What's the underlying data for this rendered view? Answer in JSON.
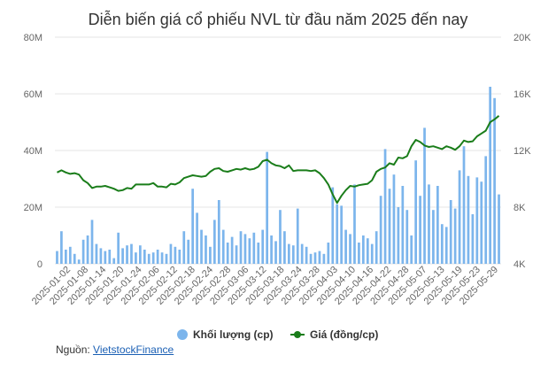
{
  "chart_data": {
    "type": "bar+line",
    "title": "Diễn biến giá cổ phiếu NVL từ đầu năm 2025 đến nay",
    "left_axis": {
      "ylim": [
        0,
        80000000
      ],
      "ticks": [
        "0",
        "20M",
        "40M",
        "60M",
        "80M"
      ]
    },
    "right_axis": {
      "ylim": [
        4000,
        20000
      ],
      "ticks": [
        "4K",
        "8K",
        "12K",
        "16K",
        "20K"
      ]
    },
    "x_tick_labels": [
      "2025-01-02",
      "2025-01-08",
      "2025-01-14",
      "2025-01-20",
      "2025-01-24",
      "2025-02-06",
      "2025-02-12",
      "2025-02-18",
      "2025-02-24",
      "2025-02-28",
      "2025-03-06",
      "2025-03-12",
      "2025-03-18",
      "2025-03-24",
      "2025-03-28",
      "2025-04-03",
      "2025-04-10",
      "2025-04-16",
      "2025-04-22",
      "2025-04-28",
      "2025-05-07",
      "2025-05-13",
      "2025-05-19",
      "2025-05-23",
      "2025-05-29"
    ],
    "grid": true,
    "legend_position": "bottom",
    "series": [
      {
        "name": "Khối lượng (cp)",
        "kind": "bar",
        "axis": "left",
        "color": "#7cb5ec",
        "values": [
          4500000,
          11500000,
          5000000,
          6000000,
          3500000,
          1500000,
          8500000,
          10000000,
          15500000,
          7000000,
          5500000,
          4500000,
          5000000,
          2000000,
          11000000,
          5500000,
          6500000,
          7000000,
          4000000,
          6500000,
          5000000,
          3500000,
          4000000,
          5000000,
          4000000,
          3500000,
          7000000,
          6000000,
          5000000,
          11500000,
          8500000,
          26500000,
          18000000,
          12000000,
          10000000,
          6000000,
          15500000,
          22500000,
          12000000,
          7500000,
          9500000,
          6500000,
          11500000,
          10500000,
          9000000,
          11000000,
          7500000,
          12000000,
          39500000,
          10000000,
          8000000,
          19000000,
          11500000,
          7000000,
          6500000,
          19500000,
          7000000,
          6000000,
          3500000,
          4000000,
          4500000,
          3500000,
          7500000,
          27000000,
          21000000,
          20500000,
          12000000,
          10500000,
          28000000,
          7500000,
          10000000,
          9000000,
          7000000,
          11500000,
          24000000,
          40500000,
          26500000,
          31500000,
          20000000,
          27500000,
          19000000,
          10000000,
          36500000,
          24000000,
          48000000,
          28000000,
          19000000,
          27500000,
          14000000,
          13000000,
          22500000,
          19500000,
          33000000,
          41500000,
          31000000,
          17500000,
          30500000,
          29000000,
          38000000,
          62500000,
          58500000,
          24500000
        ]
      },
      {
        "name": "Giá (đồng/cp)",
        "kind": "line",
        "axis": "right",
        "color": "#1a7d1a",
        "values": [
          10450,
          10600,
          10450,
          10350,
          10400,
          10300,
          9900,
          9700,
          9350,
          9450,
          9450,
          9500,
          9400,
          9300,
          9150,
          9200,
          9350,
          9300,
          9600,
          9600,
          9600,
          9600,
          9700,
          9450,
          9450,
          9400,
          9650,
          9600,
          9750,
          10050,
          10150,
          10250,
          10200,
          10150,
          10200,
          10500,
          10700,
          10750,
          10550,
          10500,
          10600,
          10700,
          10650,
          10750,
          10650,
          10700,
          10850,
          11250,
          11350,
          11100,
          10950,
          10900,
          10750,
          10950,
          10550,
          10600,
          10600,
          10600,
          10550,
          10600,
          10400,
          10050,
          9600,
          8900,
          8300,
          8800,
          9200,
          9500,
          9450,
          9550,
          9600,
          9650,
          9900,
          10500,
          10700,
          10800,
          11100,
          11000,
          11500,
          11450,
          11600,
          12300,
          12750,
          12600,
          12350,
          12250,
          12300,
          12200,
          12100,
          12300,
          12200,
          12050,
          12300,
          12700,
          12600,
          12650,
          13000,
          13200,
          13400,
          14000,
          14200,
          14450
        ]
      }
    ],
    "source": {
      "label": "Nguồn:",
      "link_text": "VietstockFinance"
    }
  }
}
